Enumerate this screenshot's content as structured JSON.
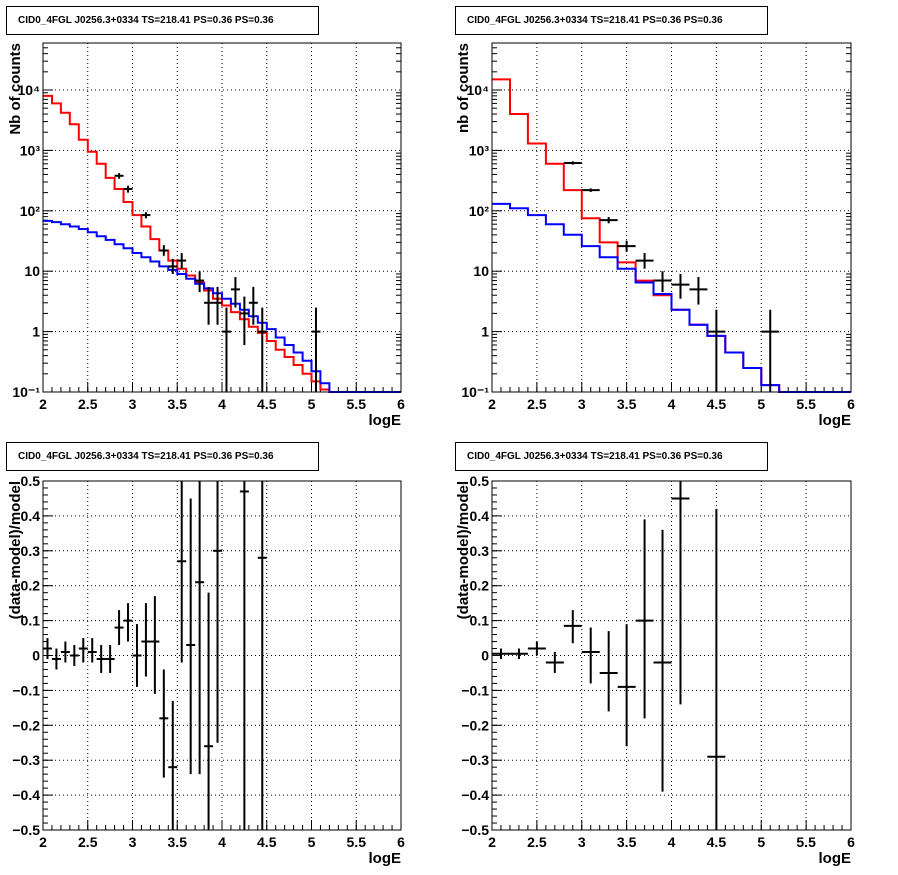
{
  "chart_data": [
    {
      "type": "line",
      "title": "CID0_4FGL J0256.3+0334 TS=218.41 PS=0.36 PS=0.36",
      "xlabel": "logE",
      "ylabel": "Nb of counts",
      "xlim": [
        2,
        6
      ],
      "ylim": [
        0.1,
        60000
      ],
      "yscale": "log",
      "grid": true,
      "x_ticks": [
        2,
        2.5,
        3,
        3.5,
        4,
        4.5,
        5,
        5.5,
        6
      ],
      "x_tick_labels": [
        "2",
        "2.5",
        "3",
        "3.5",
        "4",
        "4.5",
        "5",
        "5.5",
        "6"
      ],
      "y_ticks": [
        0.1,
        1,
        10,
        100,
        1000,
        10000
      ],
      "y_tick_labels": [
        "10⁻¹",
        "1",
        "10",
        "10²",
        "10³",
        "10⁴"
      ],
      "bin_edges": [
        2.0,
        2.1,
        2.2,
        2.3,
        2.4,
        2.5,
        2.6,
        2.7,
        2.8,
        2.9,
        3.0,
        3.1,
        3.2,
        3.3,
        3.4,
        3.5,
        3.6,
        3.7,
        3.8,
        3.9,
        4.0,
        4.1,
        4.2,
        4.3,
        4.4,
        4.5,
        4.6,
        4.7,
        4.8,
        4.9,
        5.0,
        5.1,
        5.2,
        5.3,
        5.4,
        5.5,
        5.6,
        5.7,
        5.8,
        5.9,
        6.0
      ],
      "series": [
        {
          "color": "#ff0000",
          "kind": "step",
          "values": [
            8000,
            6000,
            4200,
            2700,
            1500,
            950,
            600,
            350,
            230,
            140,
            85,
            55,
            34,
            22,
            15,
            11,
            8.5,
            6.5,
            4.8,
            3.5,
            2.7,
            2.1,
            1.6,
            1.2,
            0.95,
            0.7,
            0.5,
            0.38,
            0.28,
            0.2,
            0.15,
            0.11,
            0.1,
            0.1,
            0.1,
            0.1,
            0.1,
            0.1,
            0.1,
            0.1
          ]
        },
        {
          "color": "#0000ff",
          "kind": "step",
          "values": [
            68,
            65,
            60,
            55,
            50,
            44,
            38,
            33,
            28,
            24,
            20,
            17,
            14.5,
            12,
            10.5,
            9,
            7.5,
            6.2,
            5.2,
            4.3,
            3.5,
            2.9,
            2.3,
            1.8,
            1.4,
            1.1,
            0.8,
            0.6,
            0.45,
            0.33,
            0.22,
            0.14,
            0.1,
            0.1,
            0.1,
            0.1,
            0.1,
            0.1,
            0.1,
            0.1
          ]
        },
        {
          "color": "#000000",
          "kind": "errorbar",
          "points": [
            {
              "x": 2.85,
              "xerr": 0.05,
              "y": 380,
              "ylo": 340,
              "yhi": 420
            },
            {
              "x": 2.95,
              "xerr": 0.05,
              "y": 230,
              "ylo": 200,
              "yhi": 260
            },
            {
              "x": 3.15,
              "xerr": 0.05,
              "y": 85,
              "ylo": 75,
              "yhi": 95
            },
            {
              "x": 3.35,
              "xerr": 0.05,
              "y": 22,
              "ylo": 18,
              "yhi": 27
            },
            {
              "x": 3.45,
              "xerr": 0.05,
              "y": 12,
              "ylo": 9,
              "yhi": 16
            },
            {
              "x": 3.55,
              "xerr": 0.05,
              "y": 15,
              "ylo": 11,
              "yhi": 20
            },
            {
              "x": 3.75,
              "xerr": 0.05,
              "y": 7,
              "ylo": 4.5,
              "yhi": 10
            },
            {
              "x": 3.85,
              "xerr": 0.05,
              "y": 3,
              "ylo": 1.3,
              "yhi": 5.5
            },
            {
              "x": 3.95,
              "xerr": 0.05,
              "y": 3,
              "ylo": 1.3,
              "yhi": 5.5
            },
            {
              "x": 4.05,
              "xerr": 0.05,
              "y": 1,
              "ylo": 0.1,
              "yhi": 2.5
            },
            {
              "x": 4.15,
              "xerr": 0.05,
              "y": 5,
              "ylo": 2.5,
              "yhi": 8
            },
            {
              "x": 4.25,
              "xerr": 0.05,
              "y": 2,
              "ylo": 0.6,
              "yhi": 3.8
            },
            {
              "x": 4.35,
              "xerr": 0.05,
              "y": 3,
              "ylo": 1.3,
              "yhi": 5.5
            },
            {
              "x": 4.45,
              "xerr": 0.05,
              "y": 1,
              "ylo": 0.1,
              "yhi": 2.5
            },
            {
              "x": 5.05,
              "xerr": 0.05,
              "y": 1,
              "ylo": 0.1,
              "yhi": 2.5
            }
          ]
        }
      ]
    },
    {
      "type": "line",
      "title": "CID0_4FGL J0256.3+0334 TS=218.41 PS=0.36 PS=0.36",
      "xlabel": "logE",
      "ylabel": "nb of counts",
      "xlim": [
        2,
        6
      ],
      "ylim": [
        0.1,
        60000
      ],
      "yscale": "log",
      "grid": true,
      "x_ticks": [
        2,
        2.5,
        3,
        3.5,
        4,
        4.5,
        5,
        5.5,
        6
      ],
      "x_tick_labels": [
        "2",
        "2.5",
        "3",
        "3.5",
        "4",
        "4.5",
        "5",
        "5.5",
        "6"
      ],
      "y_ticks": [
        0.1,
        1,
        10,
        100,
        1000,
        10000
      ],
      "y_tick_labels": [
        "10⁻¹",
        "1",
        "10",
        "10²",
        "10³",
        "10⁴"
      ],
      "bin_edges": [
        2.0,
        2.2,
        2.4,
        2.6,
        2.8,
        3.0,
        3.2,
        3.4,
        3.6,
        3.8,
        4.0,
        4.2,
        4.4,
        4.6,
        4.8,
        5.0,
        5.2,
        5.4,
        5.6,
        5.8,
        6.0
      ],
      "series": [
        {
          "color": "#ff0000",
          "kind": "step",
          "values": [
            15000,
            4000,
            1300,
            600,
            220,
            75,
            30,
            14,
            7,
            4,
            2.3,
            1.3,
            0.85,
            0.45,
            0.25,
            0.13,
            0.1,
            0.1,
            0.1,
            0.1
          ]
        },
        {
          "color": "#0000ff",
          "kind": "step",
          "values": [
            130,
            110,
            85,
            60,
            40,
            26,
            17,
            11,
            6.5,
            4.2,
            2.3,
            1.3,
            0.85,
            0.45,
            0.25,
            0.13,
            0.1,
            0.1,
            0.1,
            0.1
          ]
        },
        {
          "color": "#000000",
          "kind": "errorbar",
          "points": [
            {
              "x": 2.9,
              "xerr": 0.1,
              "y": 620,
              "ylo": 580,
              "yhi": 660
            },
            {
              "x": 3.1,
              "xerr": 0.1,
              "y": 220,
              "ylo": 205,
              "yhi": 235
            },
            {
              "x": 3.3,
              "xerr": 0.1,
              "y": 70,
              "ylo": 62,
              "yhi": 79
            },
            {
              "x": 3.5,
              "xerr": 0.1,
              "y": 26,
              "ylo": 21,
              "yhi": 32
            },
            {
              "x": 3.7,
              "xerr": 0.1,
              "y": 15,
              "ylo": 11,
              "yhi": 20
            },
            {
              "x": 3.9,
              "xerr": 0.1,
              "y": 7,
              "ylo": 4.5,
              "yhi": 10
            },
            {
              "x": 4.1,
              "xerr": 0.1,
              "y": 6,
              "ylo": 3.5,
              "yhi": 9
            },
            {
              "x": 4.3,
              "xerr": 0.1,
              "y": 5,
              "ylo": 2.8,
              "yhi": 8
            },
            {
              "x": 4.5,
              "xerr": 0.1,
              "y": 1,
              "ylo": 0.1,
              "yhi": 2.3
            },
            {
              "x": 5.1,
              "xerr": 0.1,
              "y": 1,
              "ylo": 0.1,
              "yhi": 2.3
            }
          ]
        }
      ]
    },
    {
      "type": "scatter",
      "title": "CID0_4FGL J0256.3+0334 TS=218.41 PS=0.36 PS=0.36",
      "xlabel": "logE",
      "ylabel": "(data-model)/model",
      "xlim": [
        2,
        6
      ],
      "ylim": [
        -0.5,
        0.5
      ],
      "grid": true,
      "x_ticks": [
        2,
        2.5,
        3,
        3.5,
        4,
        4.5,
        5,
        5.5,
        6
      ],
      "x_tick_labels": [
        "2",
        "2.5",
        "3",
        "3.5",
        "4",
        "4.5",
        "5",
        "5.5",
        "6"
      ],
      "y_ticks": [
        -0.5,
        -0.4,
        -0.3,
        -0.2,
        -0.1,
        0,
        0.1,
        0.2,
        0.3,
        0.4,
        0.5
      ],
      "y_tick_labels": [
        "−0.5",
        "−0.4",
        "−0.3",
        "−0.2",
        "−0.1",
        "0",
        "0.1",
        "0.2",
        "0.3",
        "0.4",
        "0.5"
      ],
      "series": [
        {
          "color": "#000000",
          "kind": "errorbar",
          "points": [
            {
              "x": 2.05,
              "xerr": 0.05,
              "y": 0.02,
              "ylo": -0.01,
              "yhi": 0.05
            },
            {
              "x": 2.15,
              "xerr": 0.05,
              "y": -0.01,
              "ylo": -0.04,
              "yhi": 0.02
            },
            {
              "x": 2.25,
              "xerr": 0.05,
              "y": 0.01,
              "ylo": -0.02,
              "yhi": 0.04
            },
            {
              "x": 2.35,
              "xerr": 0.05,
              "y": 0.0,
              "ylo": -0.03,
              "yhi": 0.03
            },
            {
              "x": 2.45,
              "xerr": 0.05,
              "y": 0.02,
              "ylo": -0.02,
              "yhi": 0.05
            },
            {
              "x": 2.55,
              "xerr": 0.05,
              "y": 0.01,
              "ylo": -0.02,
              "yhi": 0.05
            },
            {
              "x": 2.65,
              "xerr": 0.05,
              "y": -0.01,
              "ylo": -0.05,
              "yhi": 0.03
            },
            {
              "x": 2.75,
              "xerr": 0.05,
              "y": -0.01,
              "ylo": -0.05,
              "yhi": 0.03
            },
            {
              "x": 2.85,
              "xerr": 0.05,
              "y": 0.08,
              "ylo": 0.03,
              "yhi": 0.13
            },
            {
              "x": 2.95,
              "xerr": 0.05,
              "y": 0.1,
              "ylo": 0.04,
              "yhi": 0.15
            },
            {
              "x": 3.05,
              "xerr": 0.05,
              "y": 0.0,
              "ylo": -0.09,
              "yhi": 0.09
            },
            {
              "x": 3.15,
              "xerr": 0.05,
              "y": 0.04,
              "ylo": -0.06,
              "yhi": 0.15
            },
            {
              "x": 3.25,
              "xerr": 0.05,
              "y": 0.04,
              "ylo": -0.11,
              "yhi": 0.17
            },
            {
              "x": 3.35,
              "xerr": 0.05,
              "y": -0.18,
              "ylo": -0.35,
              "yhi": -0.04
            },
            {
              "x": 3.45,
              "xerr": 0.05,
              "y": -0.32,
              "ylo": -0.5,
              "yhi": -0.13
            },
            {
              "x": 3.55,
              "xerr": 0.05,
              "y": 0.27,
              "ylo": -0.02,
              "yhi": 0.5
            },
            {
              "x": 3.65,
              "xerr": 0.05,
              "y": 0.03,
              "ylo": -0.34,
              "yhi": 0.45
            },
            {
              "x": 3.75,
              "xerr": 0.05,
              "y": 0.21,
              "ylo": -0.34,
              "yhi": 0.5
            },
            {
              "x": 3.85,
              "xerr": 0.05,
              "y": -0.26,
              "ylo": -0.5,
              "yhi": 0.18
            },
            {
              "x": 3.95,
              "xerr": 0.05,
              "y": 0.3,
              "ylo": -0.25,
              "yhi": 0.5
            },
            {
              "x": 4.25,
              "xerr": 0.05,
              "y": 0.47,
              "ylo": -0.5,
              "yhi": 0.5
            },
            {
              "x": 4.45,
              "xerr": 0.05,
              "y": 0.28,
              "ylo": -0.5,
              "yhi": 0.5
            }
          ]
        }
      ]
    },
    {
      "type": "scatter",
      "title": "CID0_4FGL J0256.3+0334 TS=218.41 PS=0.36 PS=0.36",
      "xlabel": "logE",
      "ylabel": "(data-model)/model",
      "xlim": [
        2,
        6
      ],
      "ylim": [
        -0.5,
        0.5
      ],
      "grid": true,
      "x_ticks": [
        2,
        2.5,
        3,
        3.5,
        4,
        4.5,
        5,
        5.5,
        6
      ],
      "x_tick_labels": [
        "2",
        "2.5",
        "3",
        "3.5",
        "4",
        "4.5",
        "5",
        "5.5",
        "6"
      ],
      "y_ticks": [
        -0.5,
        -0.4,
        -0.3,
        -0.2,
        -0.1,
        0,
        0.1,
        0.2,
        0.3,
        0.4,
        0.5
      ],
      "y_tick_labels": [
        "−0.5",
        "−0.4",
        "−0.3",
        "−0.2",
        "−0.1",
        "0",
        "0.1",
        "0.2",
        "0.3",
        "0.4",
        "0.5"
      ],
      "series": [
        {
          "color": "#000000",
          "kind": "errorbar",
          "points": [
            {
              "x": 2.1,
              "xerr": 0.1,
              "y": 0.005,
              "ylo": -0.01,
              "yhi": 0.02
            },
            {
              "x": 2.3,
              "xerr": 0.1,
              "y": 0.005,
              "ylo": -0.01,
              "yhi": 0.02
            },
            {
              "x": 2.5,
              "xerr": 0.1,
              "y": 0.02,
              "ylo": 0.0,
              "yhi": 0.04
            },
            {
              "x": 2.7,
              "xerr": 0.1,
              "y": -0.02,
              "ylo": -0.05,
              "yhi": 0.01
            },
            {
              "x": 2.9,
              "xerr": 0.1,
              "y": 0.085,
              "ylo": 0.035,
              "yhi": 0.13
            },
            {
              "x": 3.1,
              "xerr": 0.1,
              "y": 0.01,
              "ylo": -0.08,
              "yhi": 0.08
            },
            {
              "x": 3.3,
              "xerr": 0.1,
              "y": -0.05,
              "ylo": -0.16,
              "yhi": 0.07
            },
            {
              "x": 3.5,
              "xerr": 0.1,
              "y": -0.09,
              "ylo": -0.26,
              "yhi": 0.09
            },
            {
              "x": 3.7,
              "xerr": 0.1,
              "y": 0.1,
              "ylo": -0.18,
              "yhi": 0.39
            },
            {
              "x": 3.9,
              "xerr": 0.1,
              "y": -0.02,
              "ylo": -0.39,
              "yhi": 0.36
            },
            {
              "x": 4.1,
              "xerr": 0.1,
              "y": 0.45,
              "ylo": -0.14,
              "yhi": 0.5
            },
            {
              "x": 4.5,
              "xerr": 0.1,
              "y": -0.29,
              "ylo": -0.5,
              "yhi": 0.42
            }
          ]
        }
      ]
    }
  ]
}
